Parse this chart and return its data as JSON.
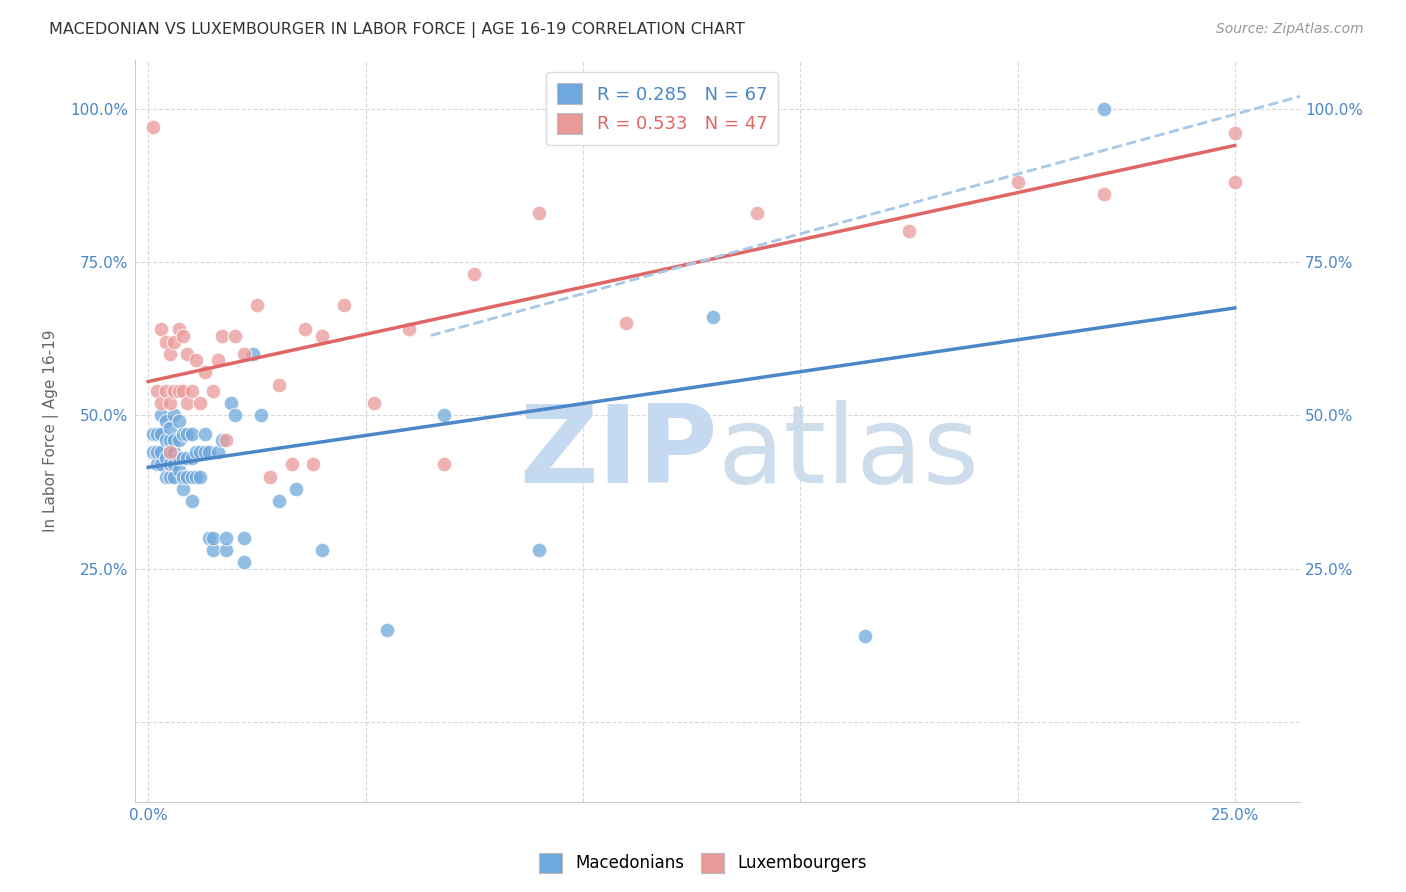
{
  "title": "MACEDONIAN VS LUXEMBOURGER IN LABOR FORCE | AGE 16-19 CORRELATION CHART",
  "source": "Source: ZipAtlas.com",
  "ylabel": "In Labor Force | Age 16-19",
  "x_ticks": [
    0.0,
    0.05,
    0.1,
    0.15,
    0.2,
    0.25
  ],
  "x_tick_labels_show": [
    "0.0%",
    "25.0%"
  ],
  "y_ticks": [
    0.0,
    0.25,
    0.5,
    0.75,
    1.0
  ],
  "xlim": [
    -0.003,
    0.265
  ],
  "ylim": [
    -0.13,
    1.08
  ],
  "macedonian_R": 0.285,
  "macedonian_N": 67,
  "luxembourger_R": 0.533,
  "luxembourger_N": 47,
  "macedonian_color": "#6fa8dc",
  "luxembourger_color": "#ea9999",
  "macedonian_line_color": "#4a86c8",
  "luxembourger_line_color": "#e06666",
  "dashed_line_color": "#a8c8e8",
  "background_color": "#ffffff",
  "grid_color": "#d8d8d8",
  "watermark_zip_color": "#c5daf0",
  "watermark_atlas_color": "#c8daea",
  "legend_blue_text": "#4a86c8",
  "legend_pink_text": "#e06666",
  "axis_tick_color": "#4a86c8",
  "axis_label_color": "#666666",
  "macedonian_x": [
    0.001,
    0.001,
    0.002,
    0.002,
    0.002,
    0.003,
    0.003,
    0.003,
    0.003,
    0.004,
    0.004,
    0.004,
    0.004,
    0.005,
    0.005,
    0.005,
    0.005,
    0.005,
    0.006,
    0.006,
    0.006,
    0.006,
    0.006,
    0.007,
    0.007,
    0.007,
    0.007,
    0.008,
    0.008,
    0.008,
    0.008,
    0.009,
    0.009,
    0.009,
    0.01,
    0.01,
    0.01,
    0.01,
    0.011,
    0.011,
    0.012,
    0.012,
    0.013,
    0.013,
    0.014,
    0.014,
    0.015,
    0.015,
    0.016,
    0.017,
    0.018,
    0.018,
    0.019,
    0.02,
    0.022,
    0.022,
    0.024,
    0.026,
    0.03,
    0.034,
    0.04,
    0.055,
    0.068,
    0.09,
    0.13,
    0.165,
    0.22
  ],
  "macedonian_y": [
    0.44,
    0.47,
    0.42,
    0.44,
    0.47,
    0.42,
    0.44,
    0.47,
    0.5,
    0.4,
    0.43,
    0.46,
    0.49,
    0.4,
    0.42,
    0.44,
    0.46,
    0.48,
    0.4,
    0.42,
    0.44,
    0.46,
    0.5,
    0.41,
    0.43,
    0.46,
    0.49,
    0.38,
    0.4,
    0.43,
    0.47,
    0.4,
    0.43,
    0.47,
    0.36,
    0.4,
    0.43,
    0.47,
    0.4,
    0.44,
    0.4,
    0.44,
    0.44,
    0.47,
    0.3,
    0.44,
    0.28,
    0.3,
    0.44,
    0.46,
    0.28,
    0.3,
    0.52,
    0.5,
    0.26,
    0.3,
    0.6,
    0.5,
    0.36,
    0.38,
    0.28,
    0.15,
    0.5,
    0.28,
    0.66,
    0.14,
    1.0
  ],
  "luxembourger_x": [
    0.001,
    0.002,
    0.003,
    0.003,
    0.004,
    0.004,
    0.005,
    0.005,
    0.006,
    0.006,
    0.007,
    0.007,
    0.008,
    0.008,
    0.009,
    0.009,
    0.01,
    0.011,
    0.012,
    0.013,
    0.015,
    0.016,
    0.017,
    0.018,
    0.02,
    0.022,
    0.025,
    0.028,
    0.03,
    0.033,
    0.036,
    0.04,
    0.045,
    0.052,
    0.06,
    0.075,
    0.09,
    0.11,
    0.14,
    0.175,
    0.2,
    0.22,
    0.25,
    0.038,
    0.068,
    0.005,
    0.25
  ],
  "luxembourger_y": [
    0.97,
    0.54,
    0.52,
    0.64,
    0.54,
    0.62,
    0.52,
    0.6,
    0.54,
    0.62,
    0.54,
    0.64,
    0.54,
    0.63,
    0.52,
    0.6,
    0.54,
    0.59,
    0.52,
    0.57,
    0.54,
    0.59,
    0.63,
    0.46,
    0.63,
    0.6,
    0.68,
    0.4,
    0.55,
    0.42,
    0.64,
    0.63,
    0.68,
    0.52,
    0.64,
    0.73,
    0.83,
    0.65,
    0.83,
    0.8,
    0.88,
    0.86,
    0.96,
    0.42,
    0.42,
    0.44,
    0.88
  ],
  "mac_line_x0": 0.0,
  "mac_line_y0": 0.415,
  "mac_line_x1": 0.25,
  "mac_line_y1": 0.675,
  "lux_line_x0": 0.0,
  "lux_line_y0": 0.555,
  "lux_line_x1": 0.25,
  "lux_line_y1": 0.94,
  "dash_line_x0": 0.065,
  "dash_line_y0": 0.63,
  "dash_line_x1": 0.265,
  "dash_line_y1": 1.02
}
